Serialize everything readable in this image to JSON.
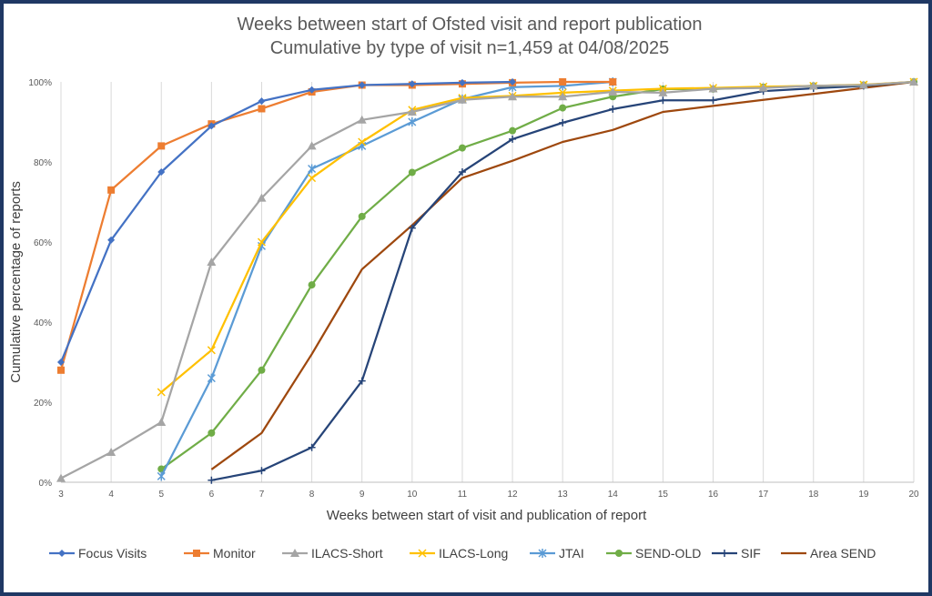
{
  "chart_data": {
    "type": "line",
    "title": "Weeks between start of Ofsted visit and report publication",
    "subtitle": "Cumulative by type of visit n=1,459 at 04/08/2025",
    "xlabel": "Weeks between start of visit and publication of report",
    "ylabel": "Cumulative percentage of reports",
    "x_ticks": [
      "3",
      "4",
      "5",
      "6",
      "7",
      "8",
      "9",
      "10",
      "11",
      "12",
      "13",
      "14",
      "15",
      "16",
      "17",
      "18",
      "19",
      "20"
    ],
    "y_ticks": [
      "0%",
      "20%",
      "40%",
      "60%",
      "80%",
      "100%"
    ],
    "xlim": [
      3,
      20
    ],
    "ylim": [
      0,
      100
    ],
    "grid": "vertical",
    "legend_position": "bottom",
    "series": [
      {
        "name": "Focus Visits",
        "color": "#4472c4",
        "marker": "diamond",
        "x": [
          3,
          4,
          5,
          6,
          7,
          8,
          9,
          10,
          11,
          12
        ],
        "values": [
          30,
          60.5,
          77.5,
          89,
          95.2,
          98,
          99.2,
          99.5,
          99.8,
          100
        ]
      },
      {
        "name": "Monitor",
        "color": "#ed7d31",
        "marker": "square",
        "x": [
          3,
          4,
          5,
          6,
          7,
          8,
          9,
          10,
          11,
          12,
          13,
          14
        ],
        "values": [
          28,
          73,
          84,
          89.5,
          93.3,
          97.5,
          99.2,
          99.2,
          99.5,
          99.8,
          100,
          100
        ]
      },
      {
        "name": "ILACS-Short",
        "color": "#a5a5a5",
        "marker": "triangle",
        "x": [
          3,
          4,
          5,
          6,
          7,
          8,
          9,
          10,
          11,
          12,
          13,
          14,
          15,
          16,
          17,
          18,
          19,
          20
        ],
        "values": [
          1,
          7.5,
          15,
          55,
          71,
          84,
          90.5,
          92.5,
          95.5,
          96.3,
          96.3,
          97.5,
          97.3,
          98.3,
          98.5,
          99,
          99.2,
          100
        ]
      },
      {
        "name": "ILACS-Long",
        "color": "#ffc000",
        "marker": "x",
        "x": [
          5,
          6,
          7,
          8,
          9,
          10,
          11,
          12,
          13,
          14,
          15,
          16,
          17,
          18,
          19,
          20
        ],
        "values": [
          22.5,
          33,
          60,
          76,
          85,
          93,
          96,
          96.5,
          97.3,
          97.8,
          98.3,
          98.5,
          98.8,
          99,
          99.3,
          100
        ]
      },
      {
        "name": "JTAI",
        "color": "#5b9bd5",
        "marker": "star",
        "x": [
          5,
          6,
          7,
          8,
          9,
          10,
          11,
          12,
          13,
          14
        ],
        "values": [
          1.5,
          26,
          59,
          78.3,
          84,
          90,
          95.7,
          98.7,
          99,
          100
        ]
      },
      {
        "name": "SEND-OLD",
        "color": "#70ad47",
        "marker": "circle",
        "x": [
          5,
          6,
          7,
          8,
          9,
          10,
          11,
          12,
          13,
          14,
          15,
          16,
          17,
          18,
          19,
          20
        ],
        "values": [
          3.3,
          12.3,
          28,
          49.3,
          66.4,
          77.4,
          83.5,
          87.8,
          93.5,
          96.3,
          98.2,
          98.2,
          98.7,
          99,
          99.2,
          100
        ]
      },
      {
        "name": "SIF",
        "color": "#264478",
        "marker": "plus",
        "x": [
          6,
          7,
          8,
          9,
          10,
          11,
          12,
          13,
          14,
          15,
          16,
          17,
          18,
          19,
          20
        ],
        "values": [
          0.5,
          2.9,
          8.7,
          25.3,
          63.5,
          77.5,
          85.7,
          89.8,
          93.2,
          95.4,
          95.4,
          97.7,
          98.4,
          99,
          100
        ]
      },
      {
        "name": "Area SEND",
        "color": "#9e480e",
        "marker": "none",
        "x": [
          6,
          7,
          8,
          9,
          10,
          11,
          12,
          13,
          14,
          15,
          16,
          17,
          18,
          19,
          20
        ],
        "values": [
          3.2,
          12.3,
          32,
          53.2,
          64.2,
          76,
          80.3,
          85,
          88,
          92.5,
          94,
          95.5,
          97,
          98.5,
          100
        ]
      }
    ]
  }
}
